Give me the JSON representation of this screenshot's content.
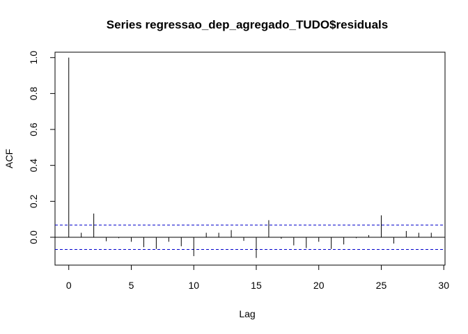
{
  "chart_data": {
    "type": "bar",
    "title": "Series  regressao_dep_agregado_TUDO$residuals",
    "xlabel": "Lag",
    "ylabel": "ACF",
    "xlim": [
      -1.1,
      30.1
    ],
    "ylim": [
      -0.155,
      1.03
    ],
    "x_ticks": [
      "0",
      "5",
      "10",
      "15",
      "20",
      "25",
      "30"
    ],
    "y_ticks": [
      "0.0",
      "0.2",
      "0.4",
      "0.6",
      "0.8",
      "1.0"
    ],
    "grid": false,
    "legend": "none",
    "ci_bound": 0.068,
    "lags": [
      0,
      1,
      2,
      3,
      4,
      5,
      6,
      7,
      8,
      9,
      10,
      11,
      12,
      13,
      14,
      15,
      16,
      17,
      18,
      19,
      20,
      21,
      22,
      23,
      24,
      25,
      26,
      27,
      28,
      29
    ],
    "acf": [
      1.0,
      0.025,
      0.132,
      -0.022,
      -0.005,
      -0.025,
      -0.055,
      -0.065,
      -0.025,
      -0.05,
      -0.105,
      0.025,
      0.025,
      0.04,
      -0.02,
      -0.115,
      0.095,
      -0.008,
      -0.045,
      -0.06,
      -0.025,
      -0.065,
      -0.04,
      -0.005,
      0.012,
      0.122,
      -0.035,
      0.035,
      0.025,
      0.025
    ],
    "colors": {
      "bars": "#000000",
      "ci_line": "#0000cc",
      "zero_line": "#000000"
    }
  }
}
